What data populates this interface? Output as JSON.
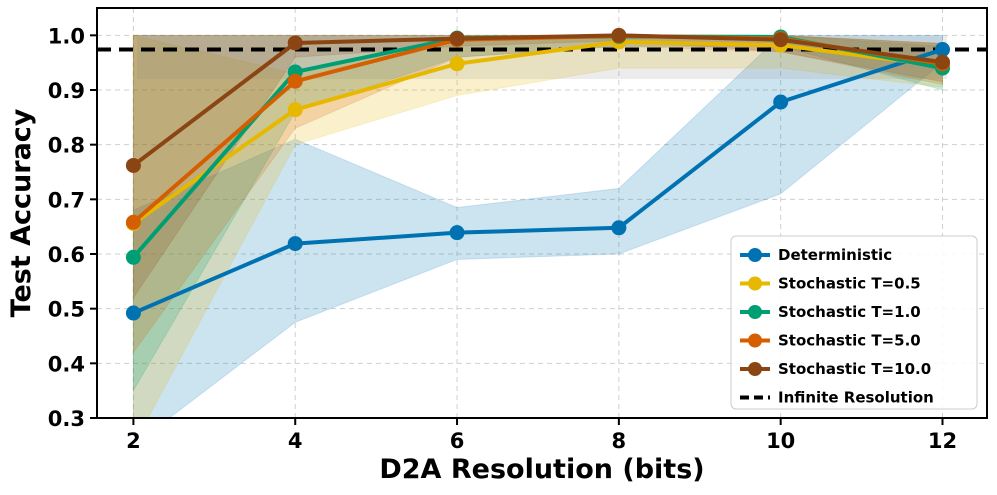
{
  "chart_data": {
    "type": "line",
    "title": "",
    "xlabel": "D2A Resolution (bits)",
    "ylabel": "Test Accuracy",
    "x": [
      2,
      4,
      6,
      8,
      10,
      12
    ],
    "xlim": [
      1.55,
      12.55
    ],
    "ylim": [
      0.3,
      1.05
    ],
    "xticks": [
      "2",
      "4",
      "6",
      "8",
      "10",
      "12"
    ],
    "yticks": [
      "0.3",
      "0.4",
      "0.5",
      "0.6",
      "0.7",
      "0.8",
      "0.9",
      "1.0"
    ],
    "grid": true,
    "legend_position": "bottom-right",
    "series": [
      {
        "name": "Deterministic",
        "color": "#0072b2",
        "values": [
          0.492,
          0.619,
          0.639,
          0.648,
          0.878,
          0.974
        ],
        "lower": [
          0.25,
          0.475,
          0.59,
          0.6,
          0.71,
          0.95
        ],
        "upper": [
          0.68,
          0.81,
          0.685,
          0.72,
          1.0,
          1.0
        ]
      },
      {
        "name": "Stochastic T=0.5",
        "color": "#e6b800",
        "values": [
          0.656,
          0.864,
          0.948,
          0.988,
          0.982,
          0.944
        ],
        "lower": [
          0.25,
          0.8,
          0.89,
          0.94,
          0.94,
          0.905
        ],
        "upper": [
          1.0,
          0.93,
          1.0,
          1.0,
          1.0,
          0.985
        ]
      },
      {
        "name": "Stochastic T=1.0",
        "color": "#009e73",
        "values": [
          0.594,
          0.933,
          0.995,
          0.998,
          0.997,
          0.94
        ],
        "lower": [
          0.35,
          0.86,
          0.96,
          0.98,
          0.98,
          0.9
        ],
        "upper": [
          1.0,
          1.0,
          1.0,
          1.0,
          1.0,
          0.98
        ]
      },
      {
        "name": "Stochastic T=5.0",
        "color": "#d55e00",
        "values": [
          0.658,
          0.916,
          0.992,
          0.999,
          0.994,
          0.948
        ],
        "lower": [
          0.42,
          0.83,
          0.96,
          0.98,
          0.97,
          0.91
        ],
        "upper": [
          1.0,
          1.0,
          1.0,
          1.0,
          1.0,
          0.985
        ]
      },
      {
        "name": "Stochastic T=10.0",
        "color": "#8b4513",
        "values": [
          0.762,
          0.986,
          0.994,
          1.0,
          0.992,
          0.951
        ],
        "lower": [
          0.52,
          0.96,
          0.98,
          0.99,
          0.97,
          0.915
        ],
        "upper": [
          1.0,
          1.0,
          1.0,
          1.0,
          1.0,
          0.985
        ]
      }
    ],
    "reference_line": {
      "name": "Infinite Resolution",
      "y": 0.974,
      "color": "#000000",
      "band_lower": 0.92,
      "band_upper": 1.0
    }
  }
}
